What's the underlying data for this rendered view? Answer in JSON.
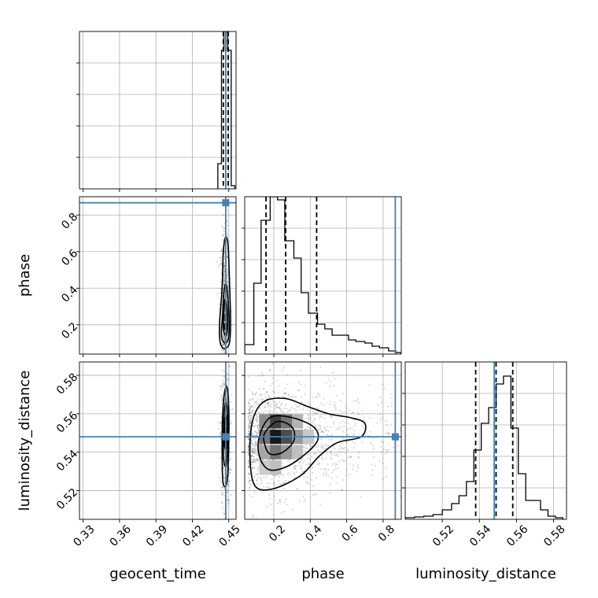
{
  "chart_data": {
    "type": "corner",
    "parameters": [
      "geocent_time",
      "phase",
      "luminosity_distance"
    ],
    "truth_color": "#4682b4",
    "truths": {
      "geocent_time": 0.447,
      "phase": 0.867,
      "luminosity_distance": 0.548
    },
    "panels": [
      {
        "id": "geocent_time-hist",
        "kind": "hist1d",
        "x_param": "geocent_time",
        "xlim": [
          0.327,
          0.456
        ],
        "xticks": [
          0.33,
          0.36,
          0.39,
          0.42,
          0.45
        ],
        "ylim": [
          0,
          1.0
        ],
        "yticks": [
          0.2,
          0.4,
          0.6,
          0.8
        ],
        "bins": [
          [
            0.441,
            0.444,
            0.16
          ],
          [
            0.444,
            0.446,
            0.88
          ],
          [
            0.446,
            0.449,
            1.0
          ],
          [
            0.449,
            0.452,
            0.88
          ],
          [
            0.452,
            0.455,
            0.02
          ]
        ],
        "quantiles": [
          0.4455,
          0.4475,
          0.4495
        ],
        "truth_x": 0.4475
      },
      {
        "id": "phase-vs-geocent_time",
        "kind": "hist2d",
        "x_param": "geocent_time",
        "y_param": "phase",
        "xlim": [
          0.327,
          0.456
        ],
        "xticks": [
          0.33,
          0.36,
          0.39,
          0.42,
          0.45
        ],
        "ylim": [
          0.04,
          0.9
        ],
        "yticks": [
          0.2,
          0.4,
          0.6,
          0.8
        ],
        "ytick_labels": [
          "0.2",
          "0.4",
          "0.6",
          "0.8"
        ],
        "ylabel": "phase",
        "truth_x": 0.4475,
        "truth_y": 0.867,
        "density_cells": [
          {
            "x": 0.447,
            "y": 0.14,
            "v": 0.35
          },
          {
            "x": 0.447,
            "y": 0.19,
            "v": 0.9
          },
          {
            "x": 0.447,
            "y": 0.24,
            "v": 0.7
          },
          {
            "x": 0.447,
            "y": 0.29,
            "v": 0.45
          },
          {
            "x": 0.447,
            "y": 0.35,
            "v": 0.25
          }
        ],
        "contours": [
          [
            [
              0.4435,
              0.09
            ],
            [
              0.4465,
              0.07
            ],
            [
              0.4505,
              0.1
            ],
            [
              0.4515,
              0.22
            ],
            [
              0.4505,
              0.45
            ],
            [
              0.4495,
              0.63
            ],
            [
              0.4475,
              0.68
            ],
            [
              0.4455,
              0.6
            ],
            [
              0.4445,
              0.4
            ],
            [
              0.4425,
              0.22
            ],
            [
              0.4425,
              0.13
            ]
          ],
          [
            [
              0.4445,
              0.12
            ],
            [
              0.4475,
              0.1
            ],
            [
              0.45,
              0.14
            ],
            [
              0.45,
              0.28
            ],
            [
              0.448,
              0.42
            ],
            [
              0.446,
              0.38
            ],
            [
              0.445,
              0.26
            ],
            [
              0.444,
              0.17
            ]
          ],
          [
            [
              0.446,
              0.16
            ],
            [
              0.448,
              0.14
            ],
            [
              0.449,
              0.2
            ],
            [
              0.4485,
              0.3
            ],
            [
              0.447,
              0.34
            ],
            [
              0.446,
              0.28
            ],
            [
              0.4455,
              0.2
            ]
          ]
        ]
      },
      {
        "id": "phase-hist",
        "kind": "hist1d",
        "x_param": "phase",
        "xlim": [
          0.04,
          0.9
        ],
        "xticks": [
          0.2,
          0.4,
          0.6,
          0.8
        ],
        "ylim": [
          0,
          1.0
        ],
        "yticks": [
          0.2,
          0.4,
          0.6,
          0.8
        ],
        "bins": [
          [
            0.04,
            0.09,
            0.06
          ],
          [
            0.09,
            0.13,
            0.45
          ],
          [
            0.13,
            0.18,
            0.85
          ],
          [
            0.18,
            0.22,
            1.0
          ],
          [
            0.22,
            0.26,
            0.98
          ],
          [
            0.26,
            0.31,
            0.72
          ],
          [
            0.31,
            0.35,
            0.61
          ],
          [
            0.35,
            0.39,
            0.39
          ],
          [
            0.39,
            0.44,
            0.26
          ],
          [
            0.44,
            0.48,
            0.19
          ],
          [
            0.48,
            0.52,
            0.16
          ],
          [
            0.52,
            0.57,
            0.12
          ],
          [
            0.57,
            0.61,
            0.12
          ],
          [
            0.61,
            0.65,
            0.09
          ],
          [
            0.65,
            0.7,
            0.08
          ],
          [
            0.7,
            0.74,
            0.07
          ],
          [
            0.74,
            0.78,
            0.05
          ],
          [
            0.78,
            0.83,
            0.04
          ],
          [
            0.83,
            0.87,
            0.02
          ],
          [
            0.87,
            0.9,
            0.01
          ]
        ],
        "quantiles": [
          0.157,
          0.265,
          0.435
        ],
        "truth_x": 0.867
      },
      {
        "id": "luminosity_distance-vs-geocent_time",
        "kind": "hist2d",
        "x_param": "geocent_time",
        "y_param": "luminosity_distance",
        "xlim": [
          0.327,
          0.456
        ],
        "xticks": [
          0.33,
          0.36,
          0.39,
          0.42,
          0.45
        ],
        "xtick_labels": [
          "0.33",
          "0.36",
          "0.39",
          "0.42",
          "0.45"
        ],
        "xlabel": "geocent_time",
        "ylim": [
          0.505,
          0.587
        ],
        "yticks": [
          0.52,
          0.54,
          0.56,
          0.58
        ],
        "ytick_labels": [
          "0.52",
          "0.54",
          "0.56",
          "0.58"
        ],
        "ylabel": "luminosity_distance",
        "truth_x": 0.4475,
        "truth_y": 0.548,
        "density_cells": [
          {
            "x": 0.447,
            "y": 0.546,
            "v": 0.5
          },
          {
            "x": 0.447,
            "y": 0.551,
            "v": 0.8
          },
          {
            "x": 0.447,
            "y": 0.556,
            "v": 0.6
          },
          {
            "x": 0.447,
            "y": 0.541,
            "v": 0.25
          }
        ],
        "contours": [
          [
            [
              0.445,
              0.526
            ],
            [
              0.447,
              0.522
            ],
            [
              0.449,
              0.527
            ],
            [
              0.45,
              0.545
            ],
            [
              0.45,
              0.562
            ],
            [
              0.4485,
              0.574
            ],
            [
              0.4465,
              0.571
            ],
            [
              0.445,
              0.56
            ],
            [
              0.4445,
              0.545
            ]
          ],
          [
            [
              0.446,
              0.535
            ],
            [
              0.448,
              0.533
            ],
            [
              0.449,
              0.545
            ],
            [
              0.449,
              0.56
            ],
            [
              0.4475,
              0.566
            ],
            [
              0.446,
              0.558
            ],
            [
              0.4455,
              0.545
            ]
          ],
          [
            [
              0.4465,
              0.544
            ],
            [
              0.448,
              0.542
            ],
            [
              0.4487,
              0.552
            ],
            [
              0.448,
              0.559
            ],
            [
              0.4468,
              0.556
            ]
          ]
        ]
      },
      {
        "id": "luminosity_distance-vs-phase",
        "kind": "hist2d",
        "x_param": "phase",
        "y_param": "luminosity_distance",
        "xlim": [
          0.04,
          0.9
        ],
        "xticks": [
          0.2,
          0.4,
          0.6,
          0.8
        ],
        "xtick_labels": [
          "0.2",
          "0.4",
          "0.6",
          "0.8"
        ],
        "xlabel": "phase",
        "ylim": [
          0.505,
          0.587
        ],
        "yticks": [
          0.52,
          0.54,
          0.56,
          0.58
        ],
        "truth_x": 0.867,
        "truth_y": 0.548,
        "density_cells": [
          {
            "x": 0.15,
            "y": 0.548,
            "v": 0.55
          },
          {
            "x": 0.15,
            "y": 0.556,
            "v": 0.45
          },
          {
            "x": 0.15,
            "y": 0.54,
            "v": 0.35
          },
          {
            "x": 0.21,
            "y": 0.548,
            "v": 0.9
          },
          {
            "x": 0.21,
            "y": 0.556,
            "v": 0.75
          },
          {
            "x": 0.21,
            "y": 0.54,
            "v": 0.55
          },
          {
            "x": 0.27,
            "y": 0.548,
            "v": 0.7
          },
          {
            "x": 0.27,
            "y": 0.556,
            "v": 0.55
          },
          {
            "x": 0.27,
            "y": 0.54,
            "v": 0.4
          },
          {
            "x": 0.33,
            "y": 0.548,
            "v": 0.4
          },
          {
            "x": 0.33,
            "y": 0.556,
            "v": 0.3
          },
          {
            "x": 0.33,
            "y": 0.54,
            "v": 0.25
          },
          {
            "x": 0.15,
            "y": 0.532,
            "v": 0.2
          },
          {
            "x": 0.21,
            "y": 0.532,
            "v": 0.25
          },
          {
            "x": 0.39,
            "y": 0.548,
            "v": 0.22
          }
        ],
        "contours": [
          [
            [
              0.08,
              0.555
            ],
            [
              0.14,
              0.566
            ],
            [
              0.26,
              0.568
            ],
            [
              0.38,
              0.564
            ],
            [
              0.5,
              0.56
            ],
            [
              0.62,
              0.558
            ],
            [
              0.7,
              0.555
            ],
            [
              0.68,
              0.548
            ],
            [
              0.55,
              0.545
            ],
            [
              0.45,
              0.538
            ],
            [
              0.35,
              0.528
            ],
            [
              0.2,
              0.521
            ],
            [
              0.1,
              0.522
            ],
            [
              0.07,
              0.535
            ]
          ],
          [
            [
              0.12,
              0.548
            ],
            [
              0.18,
              0.558
            ],
            [
              0.3,
              0.558
            ],
            [
              0.42,
              0.553
            ],
            [
              0.44,
              0.546
            ],
            [
              0.36,
              0.538
            ],
            [
              0.26,
              0.532
            ],
            [
              0.17,
              0.531
            ],
            [
              0.12,
              0.538
            ]
          ],
          [
            [
              0.15,
              0.55
            ],
            [
              0.22,
              0.556
            ],
            [
              0.3,
              0.553
            ],
            [
              0.31,
              0.546
            ],
            [
              0.25,
              0.54
            ],
            [
              0.18,
              0.539
            ],
            [
              0.15,
              0.544
            ]
          ]
        ],
        "scatter_region": {
          "x": [
            0.06,
            0.86
          ],
          "y": [
            0.512,
            0.58
          ]
        }
      },
      {
        "id": "luminosity_distance-hist",
        "kind": "hist1d",
        "x_param": "luminosity_distance",
        "xlim": [
          0.5,
          0.587
        ],
        "xticks": [
          0.52,
          0.54,
          0.56,
          0.58
        ],
        "xtick_labels": [
          "0.52",
          "0.54",
          "0.56",
          "0.58"
        ],
        "xlabel": "luminosity_distance",
        "ylim": [
          0,
          1.0
        ],
        "yticks": [
          0.2,
          0.4,
          0.6,
          0.8
        ],
        "bins": [
          [
            0.5,
            0.505,
            0.01
          ],
          [
            0.505,
            0.51,
            0.015
          ],
          [
            0.51,
            0.515,
            0.02
          ],
          [
            0.515,
            0.52,
            0.03
          ],
          [
            0.52,
            0.525,
            0.06
          ],
          [
            0.525,
            0.529,
            0.1
          ],
          [
            0.529,
            0.533,
            0.15
          ],
          [
            0.533,
            0.537,
            0.24
          ],
          [
            0.537,
            0.541,
            0.44
          ],
          [
            0.541,
            0.545,
            0.61
          ],
          [
            0.545,
            0.549,
            0.71
          ],
          [
            0.549,
            0.553,
            0.86
          ],
          [
            0.553,
            0.557,
            0.91
          ],
          [
            0.557,
            0.561,
            0.58
          ],
          [
            0.561,
            0.565,
            0.29
          ],
          [
            0.565,
            0.569,
            0.12
          ],
          [
            0.569,
            0.573,
            0.12
          ],
          [
            0.573,
            0.577,
            0.06
          ],
          [
            0.577,
            0.581,
            0.02
          ],
          [
            0.581,
            0.585,
            0.01
          ]
        ],
        "quantiles": [
          0.538,
          0.549,
          0.558
        ],
        "truth_x": 0.548
      }
    ]
  }
}
